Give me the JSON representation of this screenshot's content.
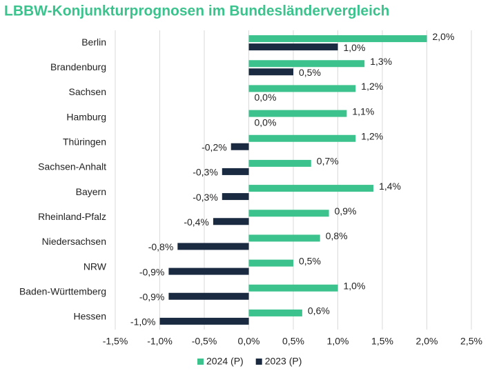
{
  "chart_data": {
    "type": "hbar",
    "title": "LBBW-Konjunkturprognosen im Bundesländervergleich",
    "categories": [
      "Berlin",
      "Brandenburg",
      "Sachsen",
      "Hamburg",
      "Thüringen",
      "Sachsen-Anhalt",
      "Bayern",
      "Rheinland-Pfalz",
      "Niedersachsen",
      "NRW",
      "Baden-Württemberg",
      "Hessen"
    ],
    "series": [
      {
        "name": "2024 (P)",
        "color": "#3cc38d",
        "values": [
          2.0,
          1.3,
          1.2,
          1.1,
          1.2,
          0.7,
          1.4,
          0.9,
          0.8,
          0.5,
          1.0,
          0.6
        ],
        "value_labels": [
          "2,0%",
          "1,3%",
          "1,2%",
          "1,1%",
          "1,2%",
          "0,7%",
          "1,4%",
          "0,9%",
          "0,8%",
          "0,5%",
          "1,0%",
          "0,6%"
        ]
      },
      {
        "name": "2023 (P)",
        "color": "#1a2a40",
        "values": [
          1.0,
          0.5,
          0.0,
          0.0,
          -0.2,
          -0.3,
          -0.3,
          -0.4,
          -0.8,
          -0.9,
          -0.9,
          -1.0
        ],
        "value_labels": [
          "1,0%",
          "0,5%",
          "0,0%",
          "0,0%",
          "-0,2%",
          "-0,3%",
          "-0,3%",
          "-0,4%",
          "-0,8%",
          "-0,9%",
          "-0,9%",
          "-1,0%"
        ]
      }
    ],
    "xlim": [
      -1.5,
      2.5
    ],
    "xticks": [
      {
        "value": -1.5,
        "label": "-1,5%"
      },
      {
        "value": -1.0,
        "label": "-1,0%"
      },
      {
        "value": -0.5,
        "label": "-0,5%"
      },
      {
        "value": 0,
        "label": "0,0%"
      },
      {
        "value": 0.5,
        "label": "0,5%"
      },
      {
        "value": 1.0,
        "label": "1,0%"
      },
      {
        "value": 1.5,
        "label": "1,5%"
      },
      {
        "value": 2.0,
        "label": "2,0%"
      },
      {
        "value": 2.5,
        "label": "2,5%"
      }
    ],
    "grid": true,
    "legend": "bottom"
  }
}
